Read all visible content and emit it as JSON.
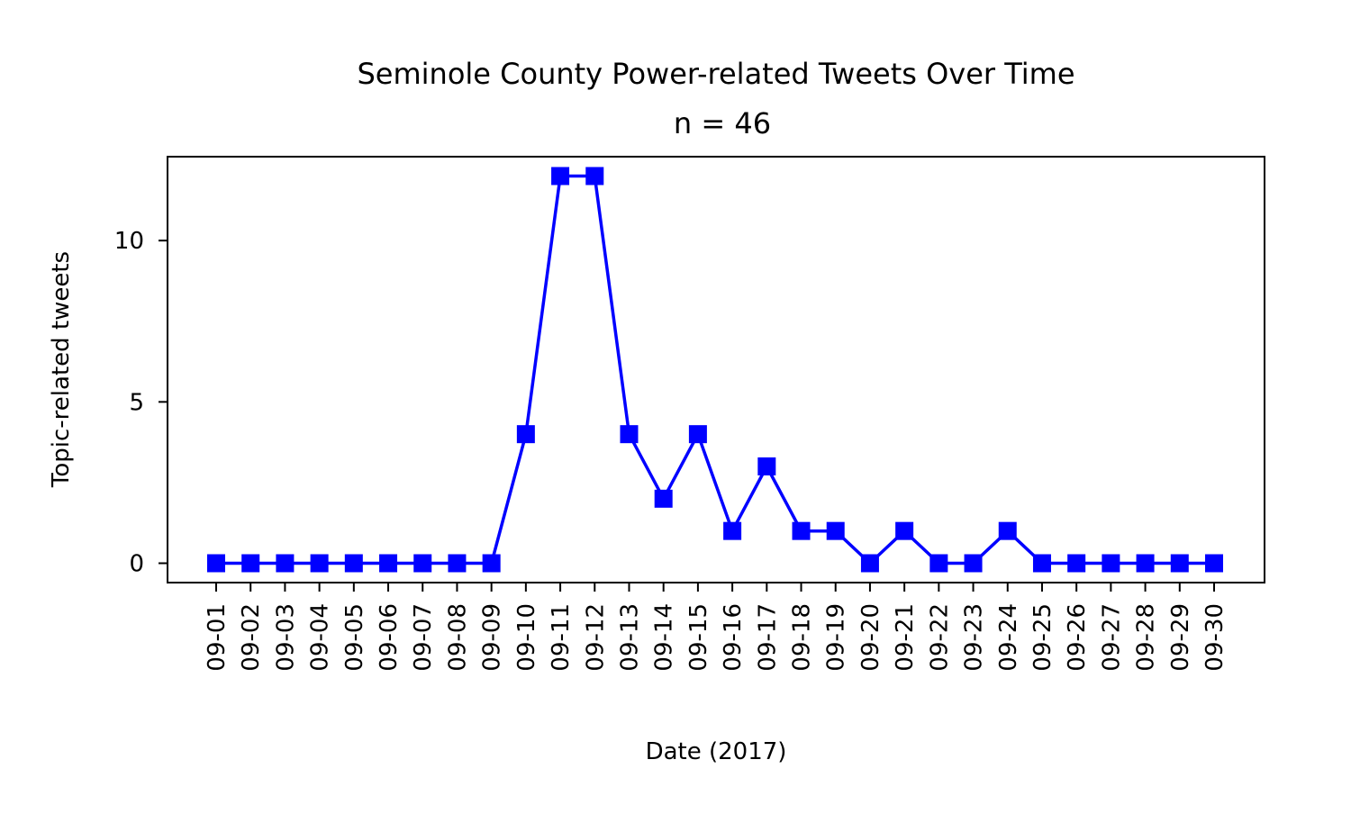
{
  "chart_data": {
    "type": "line",
    "title": "Seminole County Power-related Tweets Over Time",
    "subtitle": "n = 46",
    "xlabel": "Date (2017)",
    "ylabel": "Topic-related tweets",
    "x": [
      "09-01",
      "09-02",
      "09-03",
      "09-04",
      "09-05",
      "09-06",
      "09-07",
      "09-08",
      "09-09",
      "09-10",
      "09-11",
      "09-12",
      "09-13",
      "09-14",
      "09-15",
      "09-16",
      "09-17",
      "09-18",
      "09-19",
      "09-20",
      "09-21",
      "09-22",
      "09-23",
      "09-24",
      "09-25",
      "09-26",
      "09-27",
      "09-28",
      "09-29",
      "09-30"
    ],
    "series": [
      {
        "values": [
          0,
          0,
          0,
          0,
          0,
          0,
          0,
          0,
          0,
          4,
          12,
          12,
          4,
          2,
          4,
          1,
          3,
          1,
          1,
          0,
          1,
          0,
          0,
          1,
          0,
          0,
          0,
          0,
          0,
          0
        ],
        "color": "#0000ff",
        "marker": "square"
      }
    ],
    "ylim": [
      -0.6,
      12.6
    ],
    "yticks": [
      0,
      5,
      10
    ],
    "grid": false
  }
}
